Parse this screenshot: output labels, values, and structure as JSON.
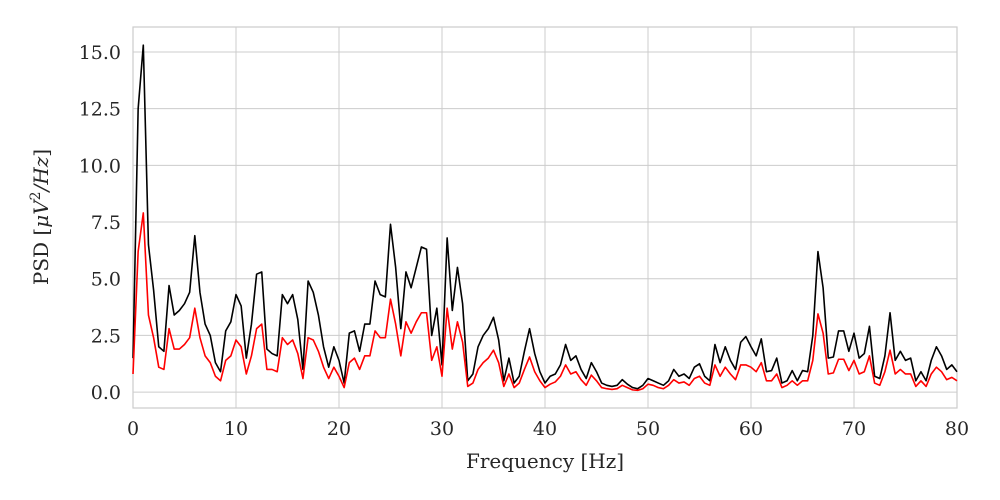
{
  "chart_data": {
    "type": "line",
    "xlabel": "Frequency [Hz]",
    "ylabel_parts": {
      "prefix": "PSD [",
      "mu": "μ",
      "V": "V",
      "exp": "2",
      "rest": "/Hz",
      "suffix": "]"
    },
    "xlim": [
      0,
      80
    ],
    "ylim": [
      -0.7,
      16.1
    ],
    "xticks": [
      0,
      10,
      20,
      30,
      40,
      50,
      60,
      70,
      80
    ],
    "xtick_labels": [
      "0",
      "10",
      "20",
      "30",
      "40",
      "50",
      "60",
      "70",
      "80"
    ],
    "yticks": [
      0,
      2.5,
      5,
      7.5,
      10,
      12.5,
      15
    ],
    "ytick_labels": [
      "0.0",
      "2.5",
      "5.0",
      "7.5",
      "10.0",
      "12.5",
      "15.0"
    ],
    "grid": true,
    "legend": "none",
    "series": [
      {
        "color": "#000000",
        "x": [
          0,
          0.5,
          1,
          1.5,
          2,
          2.5,
          3,
          3.5,
          4,
          4.5,
          5,
          5.5,
          6,
          6.5,
          7,
          7.5,
          8,
          8.5,
          9,
          9.5,
          10,
          10.5,
          11,
          11.5,
          12,
          12.5,
          13,
          13.5,
          14,
          14.5,
          15,
          15.5,
          16,
          16.5,
          17,
          17.5,
          18,
          18.5,
          19,
          19.5,
          20,
          20.5,
          21,
          21.5,
          22,
          22.5,
          23,
          23.5,
          24,
          24.5,
          25,
          25.5,
          26,
          26.5,
          27,
          27.5,
          28,
          28.5,
          29,
          29.5,
          30,
          30.5,
          31,
          31.5,
          32,
          32.5,
          33,
          33.5,
          34,
          34.5,
          35,
          35.5,
          36,
          36.5,
          37,
          37.5,
          38,
          38.5,
          39,
          39.5,
          40,
          40.5,
          41,
          41.5,
          42,
          42.5,
          43,
          43.5,
          44,
          44.5,
          45,
          45.5,
          46,
          46.5,
          47,
          47.5,
          48,
          48.5,
          49,
          49.5,
          50,
          50.5,
          51,
          51.5,
          52,
          52.5,
          53,
          53.5,
          54,
          54.5,
          55,
          55.5,
          56,
          56.5,
          57,
          57.5,
          58,
          58.5,
          59,
          59.5,
          60,
          60.5,
          61,
          61.5,
          62,
          62.5,
          63,
          63.5,
          64,
          64.5,
          65,
          65.5,
          66,
          66.5,
          67,
          67.5,
          68,
          68.5,
          69,
          69.5,
          70,
          70.5,
          71,
          71.5,
          72,
          72.5,
          73,
          73.5,
          74,
          74.5,
          75,
          75.5,
          76,
          76.5,
          77,
          77.5,
          78,
          78.5,
          79,
          79.5,
          80
        ],
        "y": [
          1.5,
          12.5,
          15.3,
          6.5,
          4.5,
          2.0,
          1.8,
          4.7,
          3.4,
          3.6,
          3.9,
          4.4,
          6.9,
          4.4,
          3.0,
          2.5,
          1.3,
          0.9,
          2.7,
          3.1,
          4.3,
          3.8,
          1.5,
          3.0,
          5.2,
          5.3,
          1.9,
          1.7,
          1.6,
          4.3,
          3.9,
          4.3,
          3.2,
          1.0,
          4.9,
          4.4,
          3.4,
          2.0,
          1.1,
          2.0,
          1.4,
          0.4,
          2.6,
          2.7,
          1.8,
          3.0,
          3.0,
          4.9,
          4.3,
          4.2,
          7.4,
          5.5,
          2.8,
          5.3,
          4.6,
          5.5,
          6.4,
          6.3,
          2.5,
          3.7,
          1.2,
          6.8,
          3.6,
          5.5,
          3.9,
          0.5,
          0.8,
          2.0,
          2.5,
          2.8,
          3.3,
          2.3,
          0.5,
          1.5,
          0.4,
          0.7,
          1.8,
          2.8,
          1.7,
          0.9,
          0.4,
          0.7,
          0.8,
          1.2,
          2.1,
          1.4,
          1.6,
          1.0,
          0.6,
          1.3,
          0.9,
          0.4,
          0.3,
          0.25,
          0.3,
          0.55,
          0.35,
          0.2,
          0.15,
          0.3,
          0.6,
          0.5,
          0.4,
          0.3,
          0.5,
          1.0,
          0.7,
          0.8,
          0.6,
          1.1,
          1.25,
          0.7,
          0.5,
          2.1,
          1.3,
          2.0,
          1.4,
          1.0,
          2.2,
          2.45,
          2.0,
          1.6,
          2.35,
          0.9,
          0.95,
          1.5,
          0.4,
          0.5,
          0.95,
          0.5,
          0.95,
          0.9,
          2.5,
          6.2,
          4.6,
          1.5,
          1.55,
          2.7,
          2.7,
          1.8,
          2.6,
          1.5,
          1.7,
          2.9,
          0.7,
          0.6,
          1.6,
          3.5,
          1.4,
          1.8,
          1.4,
          1.5,
          0.5,
          0.9,
          0.5,
          1.4,
          2.0,
          1.6,
          1.0,
          1.2,
          0.9
        ]
      },
      {
        "color": "#ff0000",
        "x": [
          0,
          0.5,
          1,
          1.5,
          2,
          2.5,
          3,
          3.5,
          4,
          4.5,
          5,
          5.5,
          6,
          6.5,
          7,
          7.5,
          8,
          8.5,
          9,
          9.5,
          10,
          10.5,
          11,
          11.5,
          12,
          12.5,
          13,
          13.5,
          14,
          14.5,
          15,
          15.5,
          16,
          16.5,
          17,
          17.5,
          18,
          18.5,
          19,
          19.5,
          20,
          20.5,
          21,
          21.5,
          22,
          22.5,
          23,
          23.5,
          24,
          24.5,
          25,
          25.5,
          26,
          26.5,
          27,
          27.5,
          28,
          28.5,
          29,
          29.5,
          30,
          30.5,
          31,
          31.5,
          32,
          32.5,
          33,
          33.5,
          34,
          34.5,
          35,
          35.5,
          36,
          36.5,
          37,
          37.5,
          38,
          38.5,
          39,
          39.5,
          40,
          40.5,
          41,
          41.5,
          42,
          42.5,
          43,
          43.5,
          44,
          44.5,
          45,
          45.5,
          46,
          46.5,
          47,
          47.5,
          48,
          48.5,
          49,
          49.5,
          50,
          50.5,
          51,
          51.5,
          52,
          52.5,
          53,
          53.5,
          54,
          54.5,
          55,
          55.5,
          56,
          56.5,
          57,
          57.5,
          58,
          58.5,
          59,
          59.5,
          60,
          60.5,
          61,
          61.5,
          62,
          62.5,
          63,
          63.5,
          64,
          64.5,
          65,
          65.5,
          66,
          66.5,
          67,
          67.5,
          68,
          68.5,
          69,
          69.5,
          70,
          70.5,
          71,
          71.5,
          72,
          72.5,
          73,
          73.5,
          74,
          74.5,
          75,
          75.5,
          76,
          76.5,
          77,
          77.5,
          78,
          78.5,
          79,
          79.5,
          80
        ],
        "y": [
          0.8,
          6.2,
          7.9,
          3.4,
          2.4,
          1.1,
          1.0,
          2.8,
          1.9,
          1.9,
          2.1,
          2.4,
          3.7,
          2.4,
          1.6,
          1.3,
          0.7,
          0.5,
          1.4,
          1.6,
          2.3,
          2.0,
          0.8,
          1.6,
          2.8,
          3.0,
          1.0,
          1.0,
          0.9,
          2.4,
          2.1,
          2.3,
          1.7,
          0.6,
          2.4,
          2.3,
          1.8,
          1.1,
          0.6,
          1.1,
          0.7,
          0.2,
          1.3,
          1.5,
          1.0,
          1.6,
          1.6,
          2.7,
          2.4,
          2.4,
          4.1,
          3.0,
          1.6,
          3.1,
          2.6,
          3.1,
          3.5,
          3.5,
          1.4,
          2.0,
          0.7,
          3.7,
          1.9,
          3.1,
          2.2,
          0.25,
          0.4,
          1.0,
          1.3,
          1.5,
          1.85,
          1.3,
          0.25,
          0.8,
          0.2,
          0.4,
          1.0,
          1.55,
          0.9,
          0.5,
          0.2,
          0.35,
          0.45,
          0.7,
          1.2,
          0.8,
          0.9,
          0.55,
          0.3,
          0.75,
          0.5,
          0.2,
          0.15,
          0.12,
          0.15,
          0.3,
          0.2,
          0.1,
          0.08,
          0.15,
          0.35,
          0.3,
          0.2,
          0.15,
          0.3,
          0.55,
          0.4,
          0.45,
          0.3,
          0.6,
          0.7,
          0.4,
          0.3,
          1.2,
          0.7,
          1.1,
          0.8,
          0.55,
          1.2,
          1.2,
          1.1,
          0.9,
          1.3,
          0.5,
          0.5,
          0.8,
          0.2,
          0.3,
          0.5,
          0.3,
          0.5,
          0.5,
          1.4,
          3.45,
          2.6,
          0.8,
          0.85,
          1.45,
          1.45,
          0.95,
          1.4,
          0.8,
          0.9,
          1.6,
          0.4,
          0.3,
          0.9,
          1.85,
          0.8,
          1.0,
          0.8,
          0.8,
          0.25,
          0.5,
          0.25,
          0.8,
          1.1,
          0.9,
          0.55,
          0.65,
          0.5
        ]
      }
    ]
  }
}
